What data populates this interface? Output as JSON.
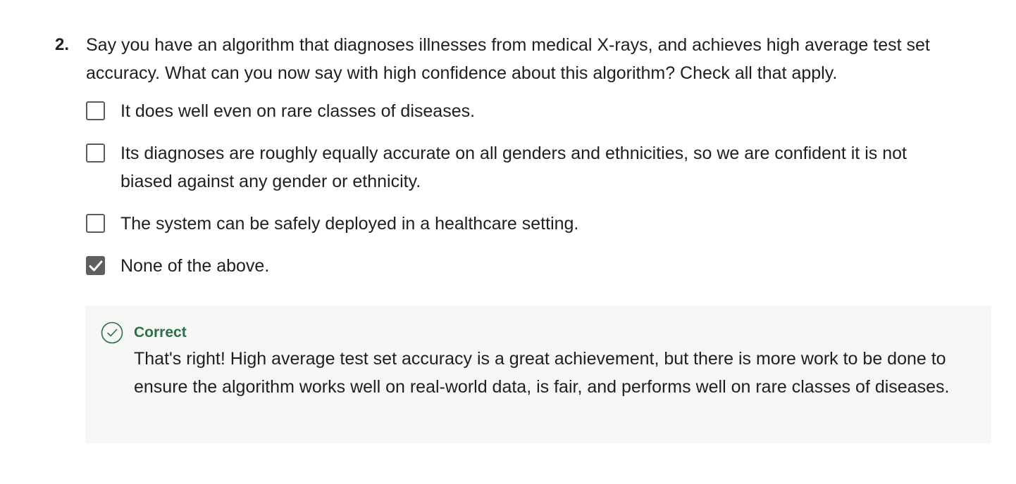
{
  "question": {
    "number": "2.",
    "text": "Say you have an algorithm that diagnoses illnesses from medical X-rays, and achieves high average test set accuracy. What can you now say with high confidence about this algorithm? Check all that apply.",
    "options": [
      {
        "label": "It does well even on rare classes of diseases.",
        "checked": false
      },
      {
        "label": "Its diagnoses are roughly equally accurate on all genders and ethnicities, so we are confident it is not biased against any gender or ethnicity.",
        "checked": false
      },
      {
        "label": "The system can be safely deployed in a healthcare setting.",
        "checked": false
      },
      {
        "label": "None of the above.",
        "checked": true
      }
    ]
  },
  "feedback": {
    "status": "Correct",
    "icon": "check-circle-icon",
    "text": "That's right! High average test set accuracy is a great achievement, but there is more work to be done to ensure the algorithm works well on real-world data, is fair, and performs well on rare classes of diseases.",
    "color": "#2f6e47",
    "background": "#f5f7f5"
  }
}
